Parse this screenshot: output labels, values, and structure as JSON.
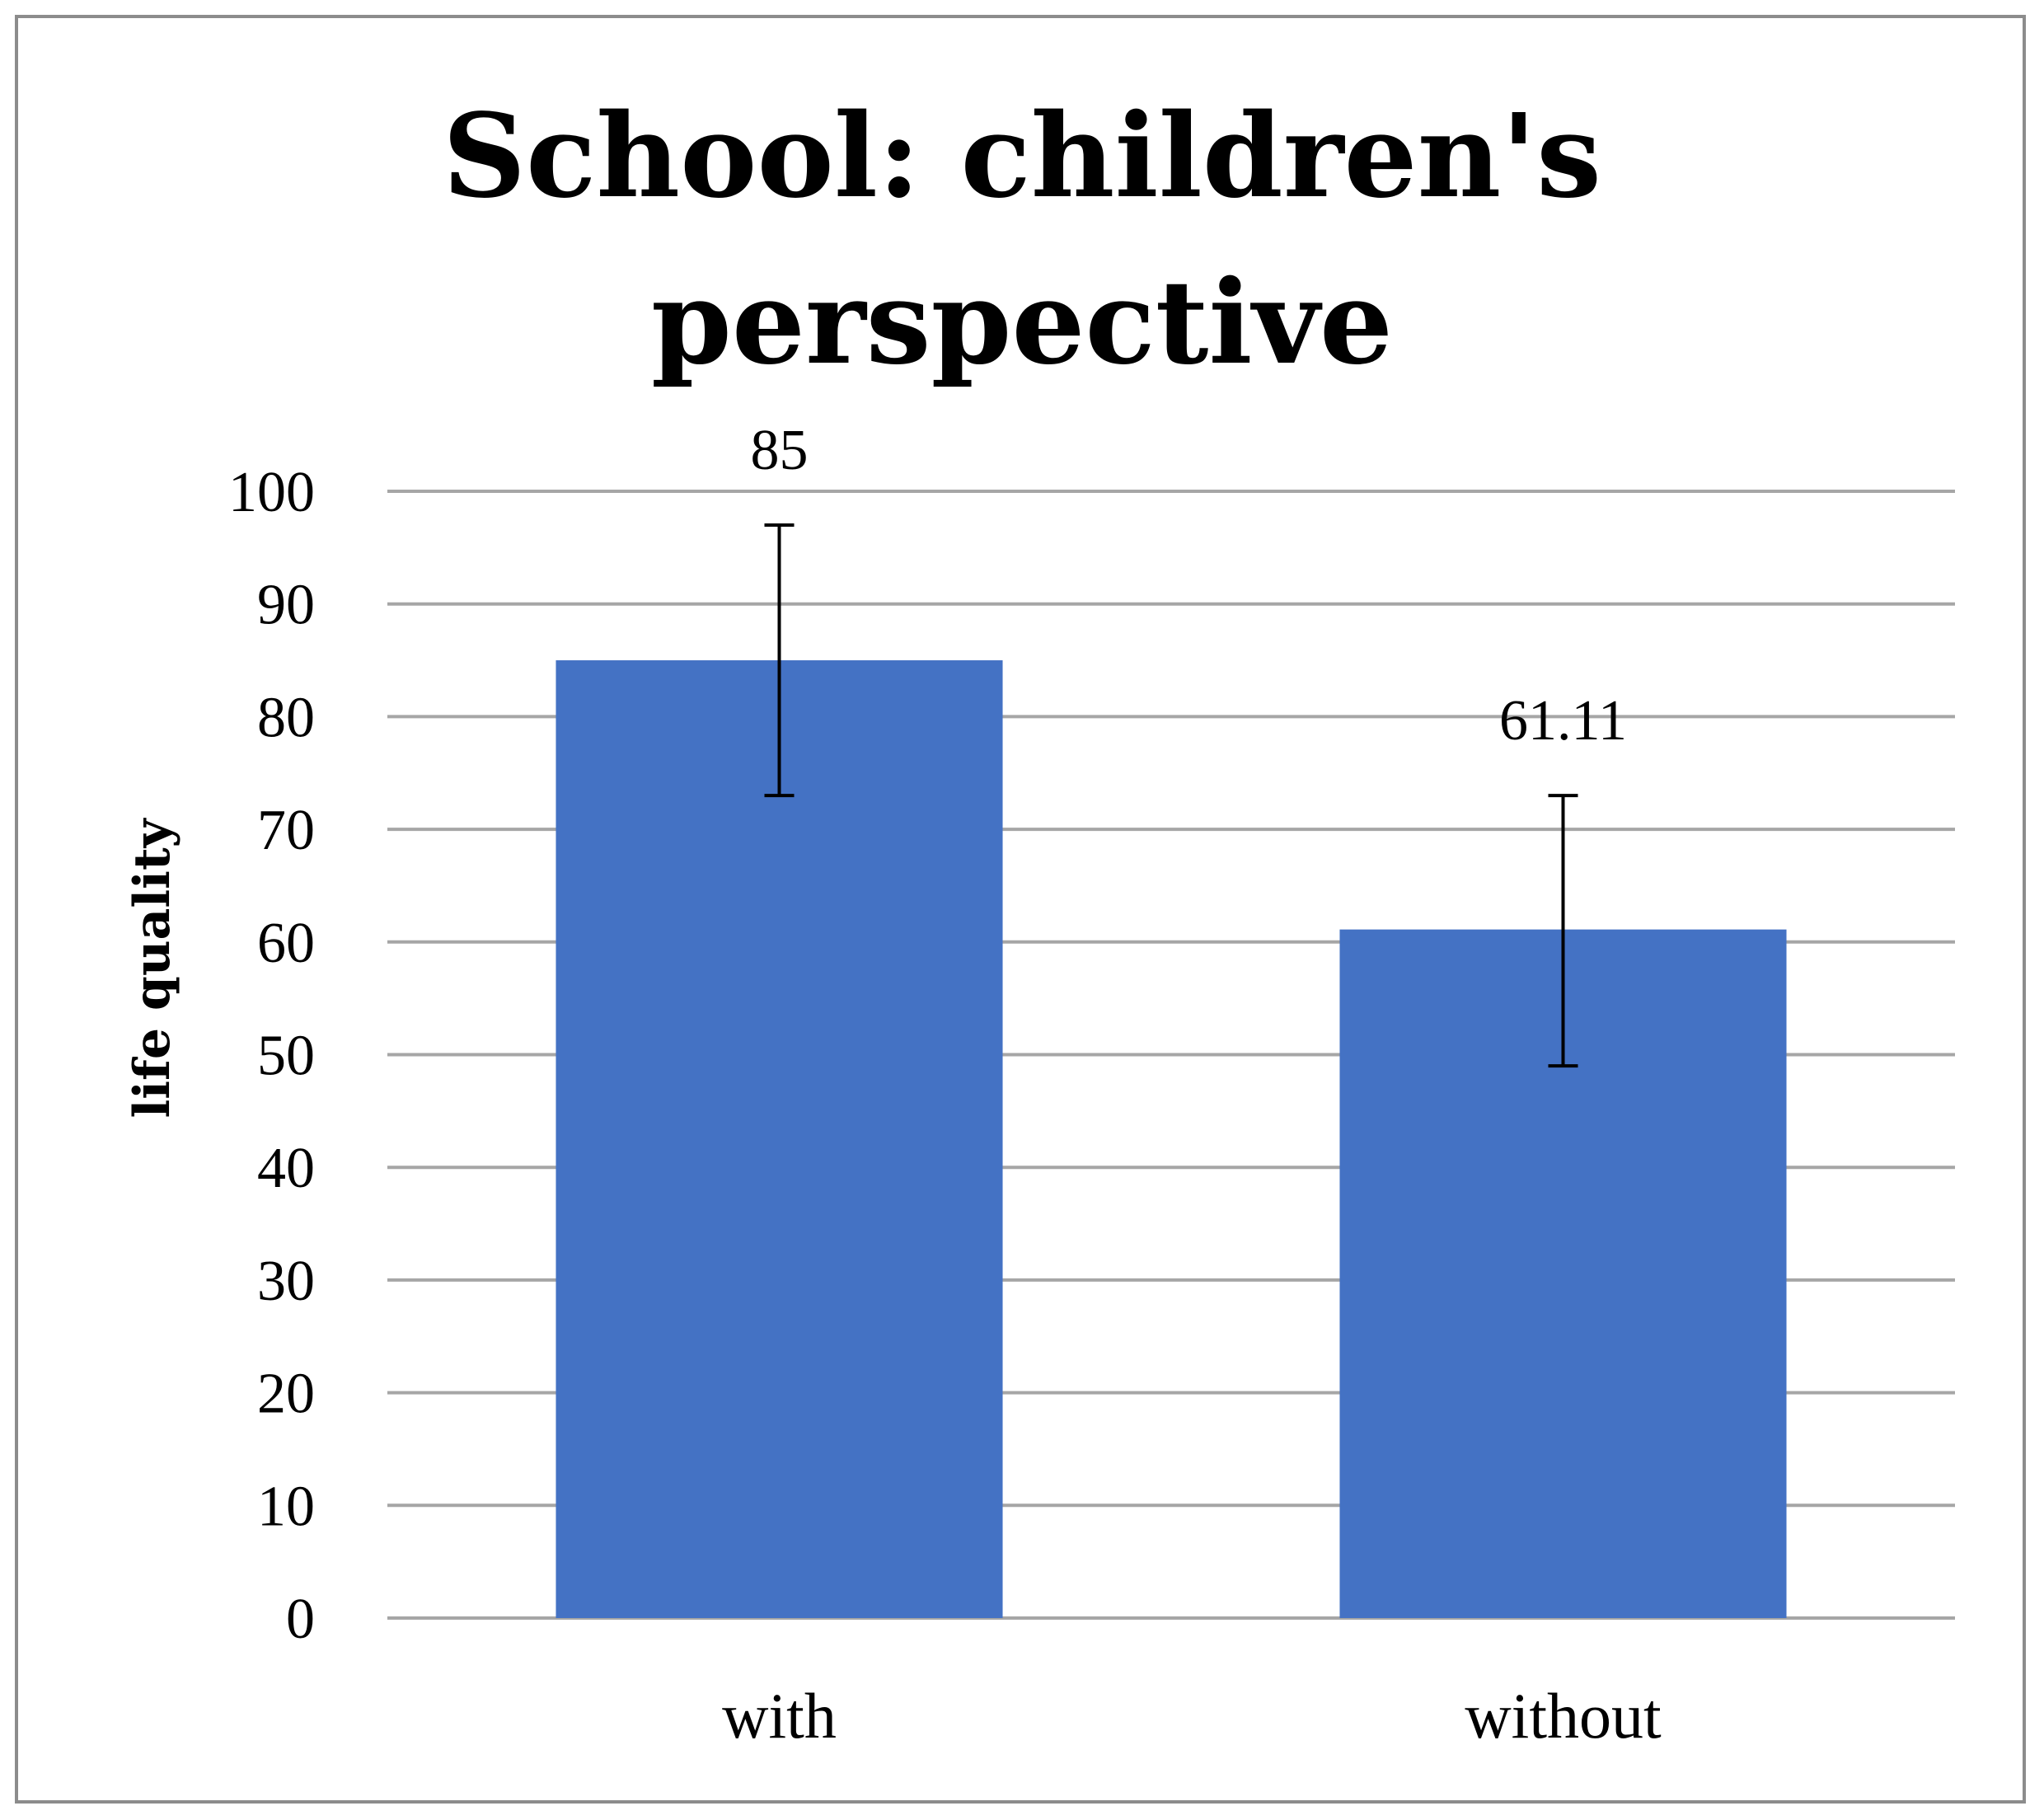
{
  "chart_data": {
    "type": "bar",
    "title_lines": [
      "School: children's",
      "perspective"
    ],
    "xlabel": "",
    "ylabel": "life quality",
    "categories": [
      "with",
      "without"
    ],
    "values": [
      85,
      61.11
    ],
    "data_labels": [
      "85",
      "61.11"
    ],
    "error_bars": [
      {
        "low": 73,
        "high": 97
      },
      {
        "low": 49,
        "high": 73
      }
    ],
    "ylim": [
      0,
      100
    ],
    "yticks": [
      0,
      10,
      20,
      30,
      40,
      50,
      60,
      70,
      80,
      90,
      100
    ],
    "grid": true,
    "legend": "none",
    "colors": {
      "bar": "#4472c4",
      "grid": "#a6a6a6",
      "frame": "#8c8c8c",
      "error_bar": "#000000"
    }
  }
}
